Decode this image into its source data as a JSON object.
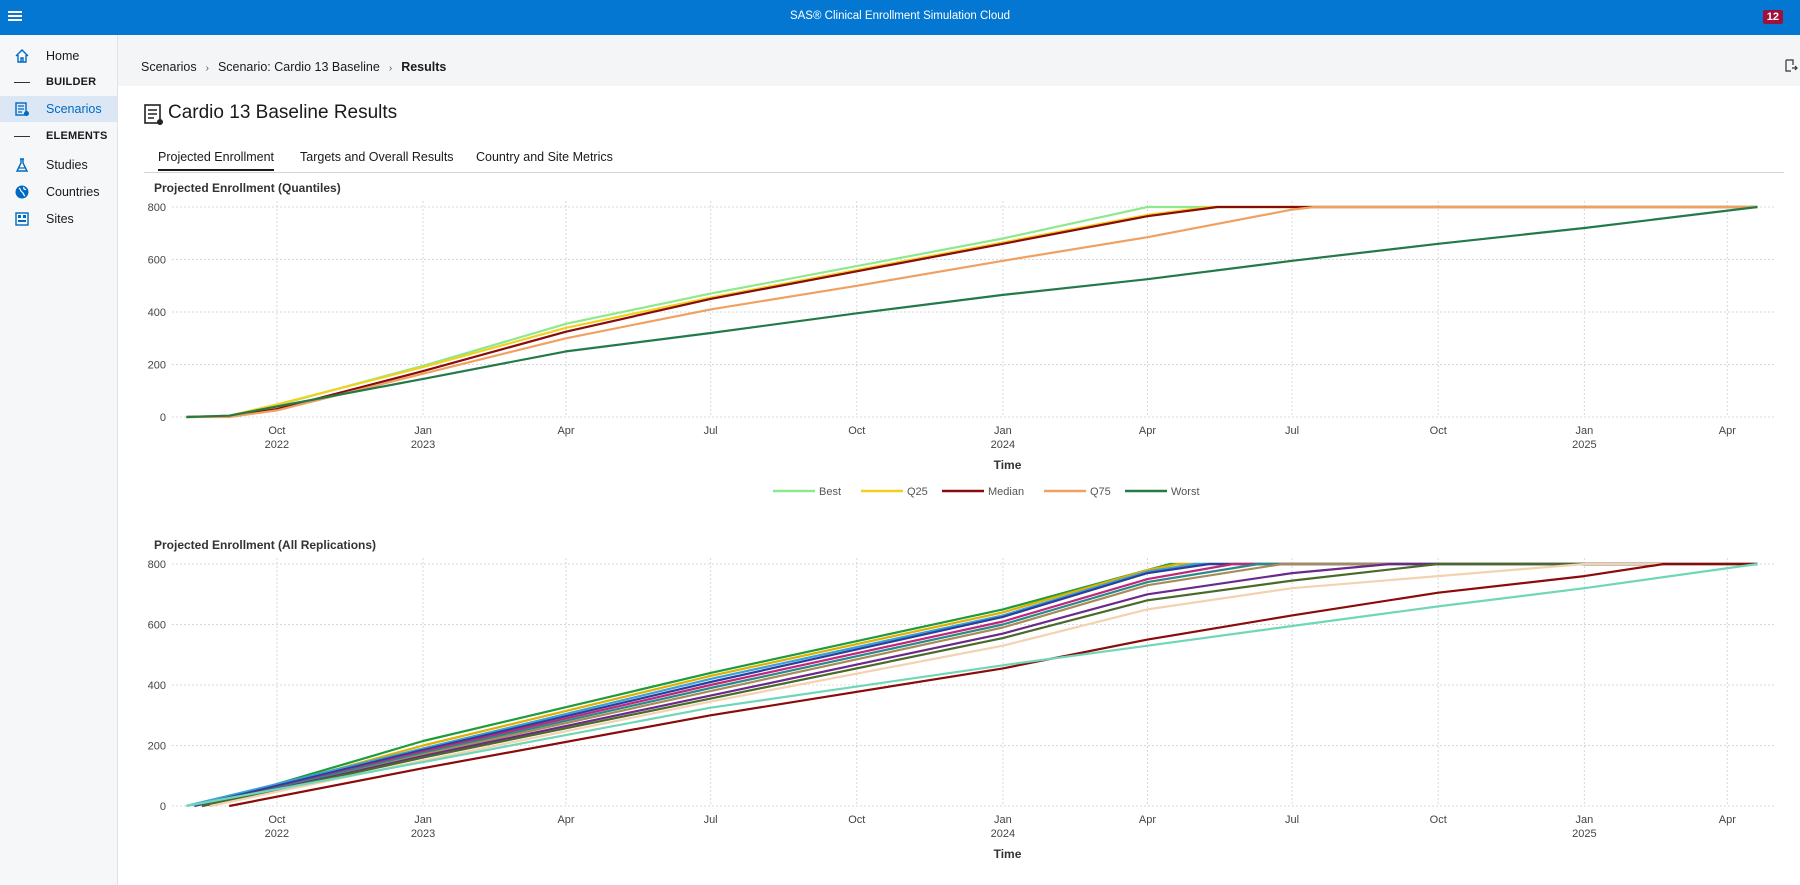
{
  "app": {
    "title": "SAS® Clinical Enrollment Simulation Cloud",
    "notification_count": "12"
  },
  "sidebar": {
    "items": [
      {
        "label": "Home",
        "icon": "home-icon"
      },
      {
        "label": "BUILDER",
        "section": true
      },
      {
        "label": "Scenarios",
        "icon": "scenarios-icon",
        "active": true
      },
      {
        "label": "ELEMENTS",
        "section": true
      },
      {
        "label": "Studies",
        "icon": "flask-icon"
      },
      {
        "label": "Countries",
        "icon": "globe-icon"
      },
      {
        "label": "Sites",
        "icon": "building-icon"
      }
    ]
  },
  "breadcrumb": [
    "Scenarios",
    "Scenario: Cardio 13 Baseline",
    "Results"
  ],
  "page": {
    "title": "Cardio 13 Baseline Results"
  },
  "tabs": [
    "Projected Enrollment",
    "Targets and Overall Results",
    "Country and Site Metrics"
  ],
  "chart_data": [
    {
      "type": "line",
      "title": "Projected Enrollment (Quantiles)",
      "xlabel": "Time",
      "ylabel": "",
      "ylim": [
        0,
        800
      ],
      "yticks": [
        0,
        200,
        400,
        600,
        800
      ],
      "xlim": [
        "2022-08-01",
        "2025-05-01"
      ],
      "xticks": [
        {
          "date": "2022-10-01",
          "label": "Oct",
          "year": "2022"
        },
        {
          "date": "2023-01-01",
          "label": "Jan",
          "year": "2023"
        },
        {
          "date": "2023-04-01",
          "label": "Apr",
          "year": ""
        },
        {
          "date": "2023-07-01",
          "label": "Jul",
          "year": ""
        },
        {
          "date": "2023-10-01",
          "label": "Oct",
          "year": ""
        },
        {
          "date": "2024-01-01",
          "label": "Jan",
          "year": "2024"
        },
        {
          "date": "2024-04-01",
          "label": "Apr",
          "year": ""
        },
        {
          "date": "2024-07-01",
          "label": "Jul",
          "year": ""
        },
        {
          "date": "2024-10-01",
          "label": "Oct",
          "year": ""
        },
        {
          "date": "2025-01-01",
          "label": "Jan",
          "year": "2025"
        },
        {
          "date": "2025-04-01",
          "label": "Apr",
          "year": ""
        }
      ],
      "grid": true,
      "legend": "bottom-center",
      "series": [
        {
          "name": "Best",
          "color": "#8ee88e",
          "points": [
            [
              "2022-08-05",
              0
            ],
            [
              "2022-09-01",
              5
            ],
            [
              "2022-10-01",
              45
            ],
            [
              "2023-01-01",
              195
            ],
            [
              "2023-04-01",
              355
            ],
            [
              "2023-07-01",
              470
            ],
            [
              "2023-10-01",
              575
            ],
            [
              "2024-01-01",
              680
            ],
            [
              "2024-04-01",
              800
            ],
            [
              "2025-04-20",
              800
            ]
          ]
        },
        {
          "name": "Q25",
          "color": "#f0d21e",
          "points": [
            [
              "2022-08-05",
              0
            ],
            [
              "2022-09-01",
              5
            ],
            [
              "2022-10-01",
              48
            ],
            [
              "2023-01-01",
              190
            ],
            [
              "2023-04-01",
              340
            ],
            [
              "2023-07-01",
              455
            ],
            [
              "2023-10-01",
              560
            ],
            [
              "2024-01-01",
              665
            ],
            [
              "2024-04-01",
              770
            ],
            [
              "2024-05-10",
              800
            ],
            [
              "2025-04-20",
              800
            ]
          ]
        },
        {
          "name": "Median",
          "color": "#8b0a0a",
          "points": [
            [
              "2022-08-05",
              0
            ],
            [
              "2022-09-01",
              2
            ],
            [
              "2022-10-01",
              30
            ],
            [
              "2023-01-01",
              175
            ],
            [
              "2023-04-01",
              325
            ],
            [
              "2023-07-01",
              450
            ],
            [
              "2023-10-01",
              555
            ],
            [
              "2024-01-01",
              660
            ],
            [
              "2024-04-01",
              765
            ],
            [
              "2024-05-15",
              800
            ],
            [
              "2025-04-20",
              800
            ]
          ]
        },
        {
          "name": "Q75",
          "color": "#f0a060",
          "points": [
            [
              "2022-08-05",
              0
            ],
            [
              "2022-09-01",
              0
            ],
            [
              "2022-10-01",
              25
            ],
            [
              "2023-01-01",
              165
            ],
            [
              "2023-04-01",
              300
            ],
            [
              "2023-07-01",
              410
            ],
            [
              "2023-10-01",
              500
            ],
            [
              "2024-01-01",
              595
            ],
            [
              "2024-04-01",
              685
            ],
            [
              "2024-07-01",
              790
            ],
            [
              "2024-07-15",
              800
            ],
            [
              "2025-04-20",
              800
            ]
          ]
        },
        {
          "name": "Worst",
          "color": "#237a48",
          "points": [
            [
              "2022-08-05",
              0
            ],
            [
              "2022-09-01",
              5
            ],
            [
              "2022-10-01",
              40
            ],
            [
              "2023-01-01",
              145
            ],
            [
              "2023-04-01",
              250
            ],
            [
              "2023-07-01",
              320
            ],
            [
              "2023-10-01",
              395
            ],
            [
              "2024-01-01",
              465
            ],
            [
              "2024-04-01",
              525
            ],
            [
              "2024-07-01",
              595
            ],
            [
              "2024-10-01",
              660
            ],
            [
              "2025-01-01",
              720
            ],
            [
              "2025-04-20",
              800
            ]
          ]
        }
      ]
    },
    {
      "type": "line",
      "title": "Projected Enrollment (All Replications)",
      "xlabel": "Time",
      "ylabel": "",
      "ylim": [
        0,
        800
      ],
      "yticks": [
        0,
        200,
        400,
        600,
        800
      ],
      "xlim": [
        "2022-08-01",
        "2025-05-01"
      ],
      "grid": true,
      "legend": "none",
      "series": [
        {
          "color": "#1f9b3a",
          "points": [
            [
              "2022-08-15",
              0
            ],
            [
              "2023-01-01",
              215
            ],
            [
              "2023-07-01",
              440
            ],
            [
              "2024-01-01",
              650
            ],
            [
              "2024-04-01",
              780
            ],
            [
              "2024-04-15",
              800
            ],
            [
              "2025-04-20",
              800
            ]
          ]
        },
        {
          "color": "#e0b000",
          "points": [
            [
              "2022-08-15",
              0
            ],
            [
              "2023-01-01",
              200
            ],
            [
              "2023-07-01",
              430
            ],
            [
              "2024-01-01",
              640
            ],
            [
              "2024-04-01",
              780
            ],
            [
              "2024-04-20",
              800
            ],
            [
              "2025-04-20",
              800
            ]
          ]
        },
        {
          "color": "#3aa0d8",
          "points": [
            [
              "2022-08-05",
              0
            ],
            [
              "2023-01-01",
              190
            ],
            [
              "2023-07-01",
              420
            ],
            [
              "2024-01-01",
              630
            ],
            [
              "2024-04-01",
              775
            ],
            [
              "2024-05-01",
              800
            ],
            [
              "2025-04-20",
              800
            ]
          ]
        },
        {
          "color": "#2c3e9c",
          "points": [
            [
              "2022-08-10",
              0
            ],
            [
              "2023-01-01",
              185
            ],
            [
              "2023-07-01",
              410
            ],
            [
              "2024-01-01",
              625
            ],
            [
              "2024-04-01",
              770
            ],
            [
              "2024-05-10",
              800
            ],
            [
              "2025-04-20",
              800
            ]
          ]
        },
        {
          "color": "#c0267a",
          "points": [
            [
              "2022-08-15",
              0
            ],
            [
              "2023-01-01",
              180
            ],
            [
              "2023-07-01",
              400
            ],
            [
              "2024-01-01",
              610
            ],
            [
              "2024-04-01",
              750
            ],
            [
              "2024-05-25",
              800
            ],
            [
              "2025-04-20",
              800
            ]
          ]
        },
        {
          "color": "#2a8a8a",
          "points": [
            [
              "2022-08-15",
              0
            ],
            [
              "2023-01-01",
              175
            ],
            [
              "2023-07-01",
              390
            ],
            [
              "2024-01-01",
              600
            ],
            [
              "2024-04-01",
              740
            ],
            [
              "2024-06-10",
              800
            ],
            [
              "2025-04-20",
              800
            ]
          ]
        },
        {
          "color": "#a98a5a",
          "points": [
            [
              "2022-08-20",
              0
            ],
            [
              "2023-01-01",
              170
            ],
            [
              "2023-07-01",
              380
            ],
            [
              "2024-01-01",
              590
            ],
            [
              "2024-04-01",
              730
            ],
            [
              "2024-06-25",
              800
            ],
            [
              "2025-04-20",
              800
            ]
          ]
        },
        {
          "color": "#6a2a8a",
          "points": [
            [
              "2022-08-15",
              0
            ],
            [
              "2023-01-01",
              165
            ],
            [
              "2023-07-01",
              365
            ],
            [
              "2024-01-01",
              570
            ],
            [
              "2024-04-01",
              700
            ],
            [
              "2024-07-01",
              770
            ],
            [
              "2024-09-01",
              800
            ],
            [
              "2025-04-20",
              800
            ]
          ]
        },
        {
          "color": "#4a6a2a",
          "points": [
            [
              "2022-08-15",
              0
            ],
            [
              "2023-01-01",
              160
            ],
            [
              "2023-07-01",
              355
            ],
            [
              "2024-01-01",
              555
            ],
            [
              "2024-04-01",
              680
            ],
            [
              "2024-07-01",
              745
            ],
            [
              "2024-10-01",
              800
            ],
            [
              "2025-04-20",
              800
            ]
          ]
        },
        {
          "color": "#f2d2b0",
          "points": [
            [
              "2022-08-20",
              0
            ],
            [
              "2023-01-01",
              150
            ],
            [
              "2023-07-01",
              345
            ],
            [
              "2024-01-01",
              530
            ],
            [
              "2024-04-01",
              650
            ],
            [
              "2024-07-01",
              720
            ],
            [
              "2024-10-01",
              760
            ],
            [
              "2025-01-01",
              800
            ],
            [
              "2025-04-20",
              800
            ]
          ]
        },
        {
          "color": "#8b0a0a",
          "points": [
            [
              "2022-09-01",
              0
            ],
            [
              "2023-01-01",
              125
            ],
            [
              "2023-07-01",
              300
            ],
            [
              "2024-01-01",
              455
            ],
            [
              "2024-04-01",
              550
            ],
            [
              "2024-07-01",
              630
            ],
            [
              "2024-10-01",
              705
            ],
            [
              "2025-01-01",
              760
            ],
            [
              "2025-02-20",
              800
            ],
            [
              "2025-04-20",
              800
            ]
          ]
        },
        {
          "color": "#6fd6b6",
          "points": [
            [
              "2022-08-05",
              0
            ],
            [
              "2023-01-01",
              145
            ],
            [
              "2023-07-01",
              325
            ],
            [
              "2024-01-01",
              465
            ],
            [
              "2024-04-01",
              530
            ],
            [
              "2024-07-01",
              595
            ],
            [
              "2024-10-01",
              660
            ],
            [
              "2025-01-01",
              720
            ],
            [
              "2025-04-20",
              800
            ]
          ]
        }
      ]
    }
  ]
}
